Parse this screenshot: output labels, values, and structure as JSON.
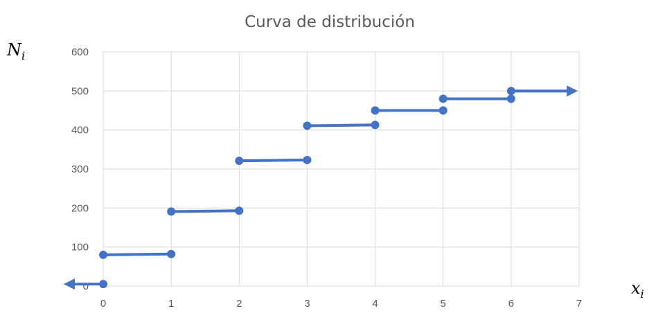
{
  "chart_data": {
    "type": "line",
    "title": "Curva de distribución",
    "xlabel": {
      "main": "x",
      "sub": "i"
    },
    "ylabel": {
      "main": "N",
      "sub": "i"
    },
    "xlim": [
      0,
      7
    ],
    "ylim": [
      0,
      600
    ],
    "x_ticks": [
      0,
      1,
      2,
      3,
      4,
      5,
      6,
      7
    ],
    "y_ticks": [
      0,
      100,
      200,
      300,
      400,
      500,
      600
    ],
    "grid": true,
    "legend": "none",
    "series_color": "#4472c4",
    "segments": [
      {
        "x": [
          -0.5,
          0
        ],
        "y": [
          5,
          5
        ],
        "arrow": "start"
      },
      {
        "x": [
          0,
          1
        ],
        "y": [
          80,
          82
        ]
      },
      {
        "x": [
          1,
          2
        ],
        "y": [
          191,
          193
        ]
      },
      {
        "x": [
          2,
          3
        ],
        "y": [
          321,
          323
        ]
      },
      {
        "x": [
          3,
          4
        ],
        "y": [
          411,
          413
        ]
      },
      {
        "x": [
          4,
          5
        ],
        "y": [
          450,
          450
        ]
      },
      {
        "x": [
          5,
          6
        ],
        "y": [
          480,
          480
        ]
      },
      {
        "x": [
          6,
          6.9
        ],
        "y": [
          500,
          500
        ],
        "arrow": "end"
      }
    ],
    "points": [
      {
        "x": 0,
        "y": 5
      },
      {
        "x": 0,
        "y": 80
      },
      {
        "x": 1,
        "y": 82
      },
      {
        "x": 1,
        "y": 191
      },
      {
        "x": 2,
        "y": 193
      },
      {
        "x": 2,
        "y": 321
      },
      {
        "x": 3,
        "y": 323
      },
      {
        "x": 3,
        "y": 411
      },
      {
        "x": 4,
        "y": 413
      },
      {
        "x": 4,
        "y": 450
      },
      {
        "x": 5,
        "y": 450
      },
      {
        "x": 5,
        "y": 480
      },
      {
        "x": 6,
        "y": 480
      },
      {
        "x": 6,
        "y": 500
      }
    ]
  }
}
